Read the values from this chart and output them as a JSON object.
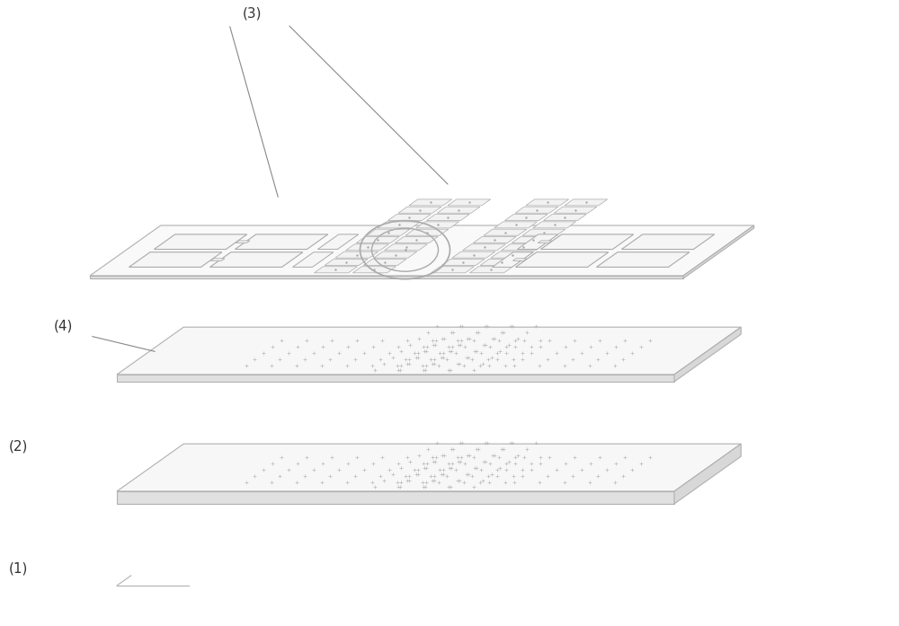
{
  "bg_color": "#ffffff",
  "line_color": "#bbbbbb",
  "label_color": "#333333",
  "label_fontsize": 11,
  "plate_face": "#f7f7f7",
  "plate_edge": "#b0b0b0",
  "cell_face": "#f2f2f2",
  "cell_edge": "#aaaaaa",
  "dot_color": "#aaaaaa",
  "via_color": "#aaaaaa"
}
